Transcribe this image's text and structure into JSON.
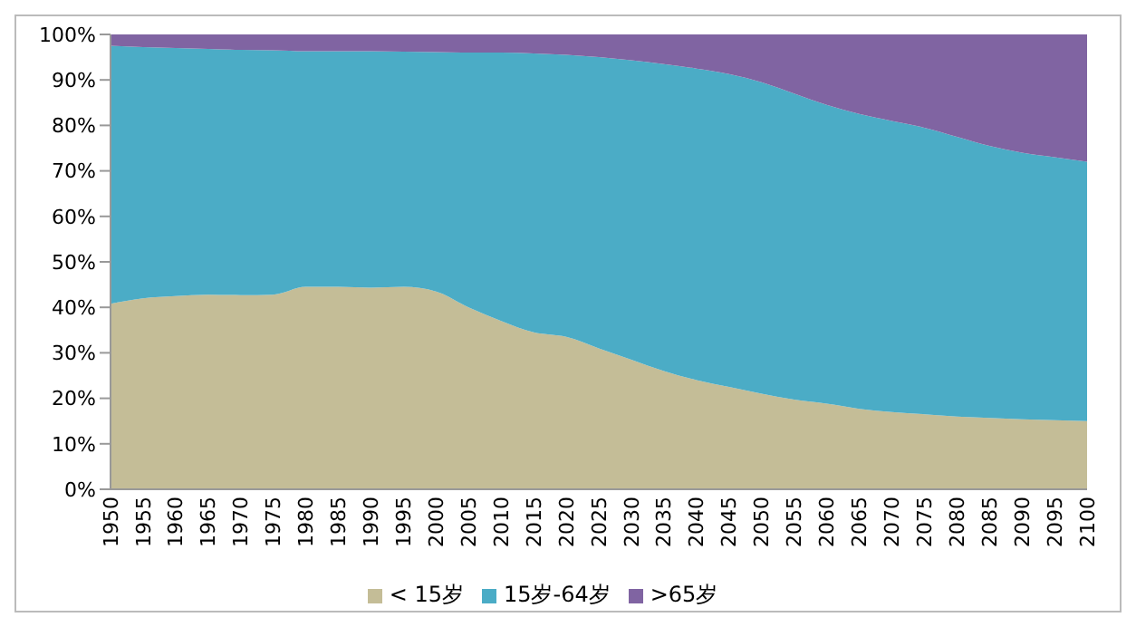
{
  "chart_data": {
    "type": "area",
    "stacked": true,
    "categories": [
      "1950",
      "1955",
      "1960",
      "1965",
      "1970",
      "1975",
      "1980",
      "1985",
      "1990",
      "1995",
      "2000",
      "2005",
      "2010",
      "2015",
      "2020",
      "2025",
      "2030",
      "2035",
      "2040",
      "2045",
      "2050",
      "2055",
      "2060",
      "2065",
      "2070",
      "2075",
      "2080",
      "2085",
      "2090",
      "2095",
      "2100"
    ],
    "series": [
      {
        "name": "< 15岁",
        "color": "#c4bd97",
        "values": [
          40.8,
          42,
          42.5,
          42.8,
          42.7,
          42.8,
          44.5,
          44.5,
          44.3,
          44.5,
          43.5,
          40,
          37,
          34.5,
          33.5,
          31,
          28.5,
          26,
          24,
          22.5,
          21,
          19.7,
          18.8,
          17.7,
          17,
          16.5,
          16,
          15.7,
          15.4,
          15.2,
          15
        ]
      },
      {
        "name": "15岁-64岁",
        "color": "#4bacc6",
        "values": [
          56.7,
          55.2,
          54.5,
          54,
          53.9,
          53.7,
          51.8,
          51.8,
          52,
          51.7,
          52.6,
          56,
          59,
          61.3,
          62,
          64,
          65.8,
          67.5,
          68.5,
          68.8,
          68.5,
          67.3,
          65.7,
          64.8,
          64,
          63,
          61.5,
          59.8,
          58.6,
          57.8,
          57
        ]
      },
      {
        "name": ">65岁",
        "color": "#8064a2",
        "values": [
          2.5,
          2.8,
          3,
          3.2,
          3.4,
          3.5,
          3.7,
          3.7,
          3.7,
          3.8,
          3.9,
          4,
          4,
          4.2,
          4.5,
          5,
          5.7,
          6.5,
          7.5,
          8.7,
          10.5,
          13,
          15.5,
          17.5,
          19,
          20.5,
          22.5,
          24.5,
          26,
          27,
          28
        ]
      }
    ],
    "ylim": [
      0,
      100
    ],
    "yticks": [
      {
        "value": 0,
        "label": "0%"
      },
      {
        "value": 10,
        "label": "10%"
      },
      {
        "value": 20,
        "label": "20%"
      },
      {
        "value": 30,
        "label": "30%"
      },
      {
        "value": 40,
        "label": "40%"
      },
      {
        "value": 50,
        "label": "50%"
      },
      {
        "value": 60,
        "label": "60%"
      },
      {
        "value": 70,
        "label": "70%"
      },
      {
        "value": 80,
        "label": "80%"
      },
      {
        "value": 90,
        "label": "90%"
      },
      {
        "value": 100,
        "label": "100%"
      }
    ],
    "grid": false,
    "legend": "bottom"
  }
}
